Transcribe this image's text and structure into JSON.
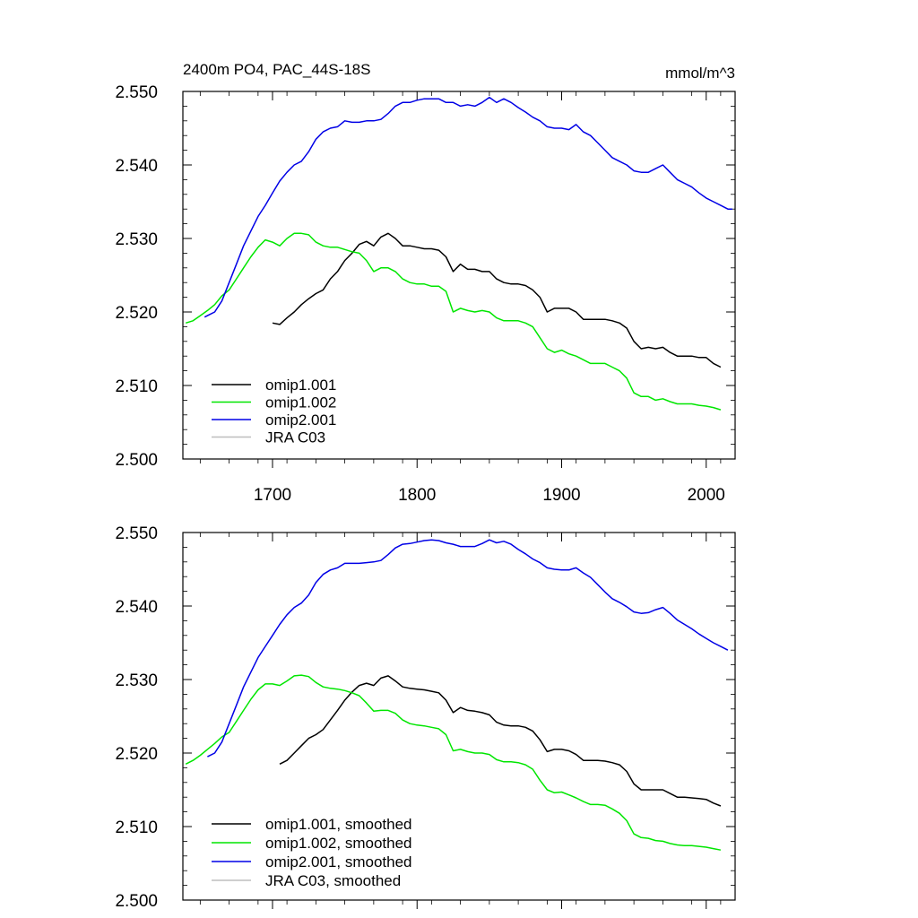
{
  "chart_data": [
    {
      "type": "line",
      "title": "2400m PO4, PAC_44S-18S",
      "units": "mmol/m^3",
      "xlabel": "",
      "ylabel": "",
      "xlim": [
        1638,
        2020
      ],
      "ylim": [
        2.5,
        2.55
      ],
      "x_ticks": [
        1700,
        1800,
        1900,
        2000
      ],
      "x_tick_labels": [
        "1700",
        "1800",
        "1900",
        "2000"
      ],
      "x_ticks_shown": true,
      "y_ticks": [
        2.5,
        2.51,
        2.52,
        2.53,
        2.54,
        2.55
      ],
      "y_tick_labels": [
        "2.500",
        "2.510",
        "2.520",
        "2.530",
        "2.540",
        "2.550"
      ],
      "grid": false,
      "legend_position": "bottom-left",
      "series": [
        {
          "name": "omip1.001",
          "color": "#000000",
          "x": [
            1700,
            1705,
            1710,
            1715,
            1720,
            1725,
            1730,
            1735,
            1740,
            1745,
            1750,
            1755,
            1760,
            1765,
            1770,
            1775,
            1780,
            1785,
            1790,
            1795,
            1800,
            1805,
            1810,
            1815,
            1820,
            1825,
            1830,
            1835,
            1840,
            1845,
            1850,
            1855,
            1860,
            1865,
            1870,
            1875,
            1880,
            1885,
            1890,
            1895,
            1900,
            1905,
            1910,
            1915,
            1920,
            1925,
            1930,
            1935,
            1940,
            1945,
            1950,
            1955,
            1960,
            1965,
            1970,
            1975,
            1980,
            1985,
            1990,
            1995,
            2000,
            2005,
            2010
          ],
          "y": [
            2.5185,
            2.5183,
            2.5192,
            2.52,
            2.521,
            2.5218,
            2.5225,
            2.523,
            2.5245,
            2.5255,
            2.527,
            2.528,
            2.5292,
            2.5296,
            2.529,
            2.5302,
            2.5307,
            2.53,
            2.529,
            2.529,
            2.5288,
            2.5286,
            2.5286,
            2.5284,
            2.5275,
            2.5255,
            2.5265,
            2.5258,
            2.5258,
            2.5255,
            2.5255,
            2.5245,
            2.524,
            2.5238,
            2.5238,
            2.5236,
            2.523,
            2.522,
            2.52,
            2.5205,
            2.5205,
            2.5205,
            2.52,
            2.519,
            2.519,
            2.519,
            2.519,
            2.5188,
            2.5185,
            2.5178,
            2.516,
            2.515,
            2.5152,
            2.515,
            2.5152,
            2.5145,
            2.514,
            2.514,
            2.514,
            2.5138,
            2.5138,
            2.513,
            2.5125
          ]
        },
        {
          "name": "omip1.002",
          "color": "#00e600",
          "x": [
            1640,
            1645,
            1650,
            1655,
            1660,
            1665,
            1670,
            1675,
            1680,
            1685,
            1690,
            1695,
            1700,
            1705,
            1710,
            1715,
            1720,
            1725,
            1730,
            1735,
            1740,
            1745,
            1750,
            1755,
            1760,
            1765,
            1770,
            1775,
            1780,
            1785,
            1790,
            1795,
            1800,
            1805,
            1810,
            1815,
            1820,
            1825,
            1830,
            1835,
            1840,
            1845,
            1850,
            1855,
            1860,
            1865,
            1870,
            1875,
            1880,
            1885,
            1890,
            1895,
            1900,
            1905,
            1910,
            1915,
            1920,
            1925,
            1930,
            1935,
            1940,
            1945,
            1950,
            1955,
            1960,
            1965,
            1970,
            1975,
            1980,
            1985,
            1990,
            1995,
            2000,
            2005,
            2010
          ],
          "y": [
            2.5185,
            2.5188,
            2.5195,
            2.5202,
            2.521,
            2.5222,
            2.523,
            2.5245,
            2.526,
            2.5275,
            2.5288,
            2.5298,
            2.5295,
            2.529,
            2.53,
            2.5307,
            2.5307,
            2.5305,
            2.5295,
            2.529,
            2.5288,
            2.5288,
            2.5285,
            2.5282,
            2.528,
            2.527,
            2.5255,
            2.526,
            2.526,
            2.5255,
            2.5245,
            2.524,
            2.5238,
            2.5238,
            2.5235,
            2.5235,
            2.5228,
            2.52,
            2.5205,
            2.5202,
            2.52,
            2.5202,
            2.52,
            2.5192,
            2.5188,
            2.5188,
            2.5188,
            2.5185,
            2.518,
            2.5165,
            2.515,
            2.5145,
            2.5148,
            2.5143,
            2.514,
            2.5135,
            2.513,
            2.513,
            2.513,
            2.5125,
            2.512,
            2.511,
            2.509,
            2.5085,
            2.5085,
            2.508,
            2.5082,
            2.5078,
            2.5075,
            2.5075,
            2.5075,
            2.5073,
            2.5072,
            2.507,
            2.5067
          ]
        },
        {
          "name": "omip2.001",
          "color": "#0000e6",
          "x": [
            1653,
            1655,
            1660,
            1665,
            1670,
            1675,
            1680,
            1685,
            1690,
            1695,
            1700,
            1705,
            1710,
            1715,
            1720,
            1725,
            1730,
            1735,
            1740,
            1745,
            1750,
            1755,
            1760,
            1765,
            1770,
            1775,
            1780,
            1785,
            1790,
            1795,
            1800,
            1805,
            1810,
            1815,
            1820,
            1825,
            1830,
            1835,
            1840,
            1845,
            1850,
            1855,
            1860,
            1865,
            1870,
            1875,
            1880,
            1885,
            1890,
            1895,
            1900,
            1905,
            1910,
            1915,
            1920,
            1925,
            1930,
            1935,
            1940,
            1945,
            1950,
            1955,
            1960,
            1965,
            1970,
            1975,
            1980,
            1985,
            1990,
            1995,
            2000,
            2005,
            2010,
            2015,
            2018
          ],
          "y": [
            2.5193,
            2.5195,
            2.52,
            2.5215,
            2.524,
            2.5265,
            2.529,
            2.531,
            2.533,
            2.5345,
            2.5362,
            2.5378,
            2.539,
            2.54,
            2.5405,
            2.5418,
            2.5435,
            2.5445,
            2.545,
            2.5452,
            2.546,
            2.5458,
            2.5458,
            2.546,
            2.546,
            2.5462,
            2.547,
            2.548,
            2.5485,
            2.5485,
            2.5488,
            2.549,
            2.549,
            2.549,
            2.5485,
            2.5485,
            2.548,
            2.5482,
            2.548,
            2.5485,
            2.5492,
            2.5485,
            2.549,
            2.5485,
            2.5478,
            2.5472,
            2.5465,
            2.546,
            2.5452,
            2.545,
            2.545,
            2.5448,
            2.5455,
            2.5445,
            2.544,
            2.543,
            2.542,
            2.541,
            2.5405,
            2.54,
            2.5392,
            2.539,
            2.539,
            2.5395,
            2.54,
            2.539,
            2.538,
            2.5375,
            2.537,
            2.5362,
            2.5355,
            2.535,
            2.5345,
            2.534,
            2.534
          ]
        }
      ],
      "legend_entries": [
        {
          "label": "omip1.001",
          "color": "#000000"
        },
        {
          "label": "omip1.002",
          "color": "#00e600"
        },
        {
          "label": "omip2.001",
          "color": "#0000e6"
        },
        {
          "label": "JRA C03",
          "color": "#bebebe"
        }
      ]
    },
    {
      "type": "line",
      "title": "",
      "units": "",
      "xlabel": "",
      "ylabel": "",
      "xlim": [
        1638,
        2020
      ],
      "ylim": [
        2.5,
        2.55
      ],
      "x_ticks": [
        1700,
        1800,
        1900,
        2000
      ],
      "x_tick_labels": [],
      "x_ticks_shown": false,
      "y_ticks": [
        2.5,
        2.51,
        2.52,
        2.53,
        2.54,
        2.55
      ],
      "y_tick_labels": [
        "2.500",
        "2.510",
        "2.520",
        "2.530",
        "2.540",
        "2.550"
      ],
      "grid": false,
      "legend_position": "bottom-left",
      "series": [
        {
          "name": "omip1.001, smoothed",
          "color": "#000000",
          "x": [
            1705,
            1710,
            1715,
            1720,
            1725,
            1730,
            1735,
            1740,
            1745,
            1750,
            1755,
            1760,
            1765,
            1770,
            1775,
            1780,
            1785,
            1790,
            1795,
            1800,
            1805,
            1810,
            1815,
            1820,
            1825,
            1830,
            1835,
            1840,
            1845,
            1850,
            1855,
            1860,
            1865,
            1870,
            1875,
            1880,
            1885,
            1890,
            1895,
            1900,
            1905,
            1910,
            1915,
            1920,
            1925,
            1930,
            1935,
            1940,
            1945,
            1950,
            1955,
            1960,
            1965,
            1970,
            1975,
            1980,
            1985,
            1990,
            1995,
            2000,
            2005,
            2010
          ],
          "y": [
            2.5185,
            2.519,
            2.52,
            2.521,
            2.522,
            2.5225,
            2.5232,
            2.5245,
            2.5258,
            2.5272,
            2.5283,
            2.5292,
            2.5295,
            2.5292,
            2.5302,
            2.5305,
            2.5298,
            2.529,
            2.5288,
            2.5287,
            2.5286,
            2.5284,
            2.5282,
            2.5272,
            2.5255,
            2.5262,
            2.5258,
            2.5257,
            2.5255,
            2.5252,
            2.5242,
            2.5238,
            2.5237,
            2.5237,
            2.5235,
            2.523,
            2.5218,
            2.5202,
            2.5205,
            2.5205,
            2.5203,
            2.5198,
            2.519,
            2.519,
            2.519,
            2.5189,
            2.5187,
            2.5184,
            2.5175,
            2.5158,
            2.515,
            2.515,
            2.515,
            2.515,
            2.5145,
            2.514,
            2.514,
            2.5139,
            2.5138,
            2.5137,
            2.5132,
            2.5128
          ]
        },
        {
          "name": "omip1.002, smoothed",
          "color": "#00e600",
          "x": [
            1640,
            1645,
            1650,
            1655,
            1660,
            1665,
            1670,
            1675,
            1680,
            1685,
            1690,
            1695,
            1700,
            1705,
            1710,
            1715,
            1720,
            1725,
            1730,
            1735,
            1740,
            1745,
            1750,
            1755,
            1760,
            1765,
            1770,
            1775,
            1780,
            1785,
            1790,
            1795,
            1800,
            1805,
            1810,
            1815,
            1820,
            1825,
            1830,
            1835,
            1840,
            1845,
            1850,
            1855,
            1860,
            1865,
            1870,
            1875,
            1880,
            1885,
            1890,
            1895,
            1900,
            1905,
            1910,
            1915,
            1920,
            1925,
            1930,
            1935,
            1940,
            1945,
            1950,
            1955,
            1960,
            1965,
            1970,
            1975,
            1980,
            1985,
            1990,
            1995,
            2000,
            2005,
            2010
          ],
          "y": [
            2.5185,
            2.519,
            2.5197,
            2.5205,
            2.5213,
            2.5222,
            2.5228,
            2.5243,
            2.5258,
            2.5273,
            2.5286,
            2.5294,
            2.5294,
            2.5292,
            2.5298,
            2.5305,
            2.5306,
            2.5304,
            2.5296,
            2.529,
            2.5288,
            2.5287,
            2.5285,
            2.5282,
            2.5278,
            2.5268,
            2.5257,
            2.5258,
            2.5258,
            2.5254,
            2.5245,
            2.524,
            2.5238,
            2.5237,
            2.5235,
            2.5233,
            2.5225,
            2.5203,
            2.5205,
            2.5202,
            2.52,
            2.52,
            2.5198,
            2.5191,
            2.5188,
            2.5188,
            2.5187,
            2.5184,
            2.5178,
            2.5163,
            2.515,
            2.5146,
            2.5147,
            2.5143,
            2.5139,
            2.5134,
            2.513,
            2.513,
            2.5129,
            2.5124,
            2.5118,
            2.5108,
            2.509,
            2.5085,
            2.5084,
            2.5081,
            2.508,
            2.5077,
            2.5075,
            2.5074,
            2.5074,
            2.5073,
            2.5072,
            2.507,
            2.5068
          ]
        },
        {
          "name": "omip2.001, smoothed",
          "color": "#0000e6",
          "x": [
            1655,
            1660,
            1665,
            1670,
            1675,
            1680,
            1685,
            1690,
            1695,
            1700,
            1705,
            1710,
            1715,
            1720,
            1725,
            1730,
            1735,
            1740,
            1745,
            1750,
            1755,
            1760,
            1765,
            1770,
            1775,
            1780,
            1785,
            1790,
            1795,
            1800,
            1805,
            1810,
            1815,
            1820,
            1825,
            1830,
            1835,
            1840,
            1845,
            1850,
            1855,
            1860,
            1865,
            1870,
            1875,
            1880,
            1885,
            1890,
            1895,
            1900,
            1905,
            1910,
            1915,
            1920,
            1925,
            1930,
            1935,
            1940,
            1945,
            1950,
            1955,
            1960,
            1965,
            1970,
            1975,
            1980,
            1985,
            1990,
            1995,
            2000,
            2005,
            2010,
            2015
          ],
          "y": [
            2.5195,
            2.52,
            2.5215,
            2.524,
            2.5265,
            2.529,
            2.531,
            2.533,
            2.5345,
            2.536,
            2.5375,
            2.5388,
            2.5398,
            2.5404,
            2.5415,
            2.5432,
            2.5443,
            2.5449,
            2.5452,
            2.5458,
            2.5458,
            2.5458,
            2.5459,
            2.546,
            2.5462,
            2.547,
            2.5479,
            2.5484,
            2.5485,
            2.5487,
            2.5489,
            2.549,
            2.5489,
            2.5486,
            2.5484,
            2.5481,
            2.5481,
            2.5481,
            2.5485,
            2.549,
            2.5486,
            2.5488,
            2.5484,
            2.5477,
            2.5471,
            2.5464,
            2.5459,
            2.5452,
            2.545,
            2.5449,
            2.5449,
            2.5452,
            2.5445,
            2.5439,
            2.5429,
            2.5419,
            2.541,
            2.5405,
            2.5399,
            2.5392,
            2.539,
            2.5391,
            2.5395,
            2.5398,
            2.539,
            2.5381,
            2.5375,
            2.5369,
            2.5362,
            2.5356,
            2.535,
            2.5345,
            2.534
          ]
        }
      ],
      "legend_entries": [
        {
          "label": "omip1.001, smoothed",
          "color": "#000000"
        },
        {
          "label": "omip1.002, smoothed",
          "color": "#00e600"
        },
        {
          "label": "omip2.001, smoothed",
          "color": "#0000e6"
        },
        {
          "label": "JRA C03, smoothed",
          "color": "#bebebe"
        }
      ]
    }
  ]
}
